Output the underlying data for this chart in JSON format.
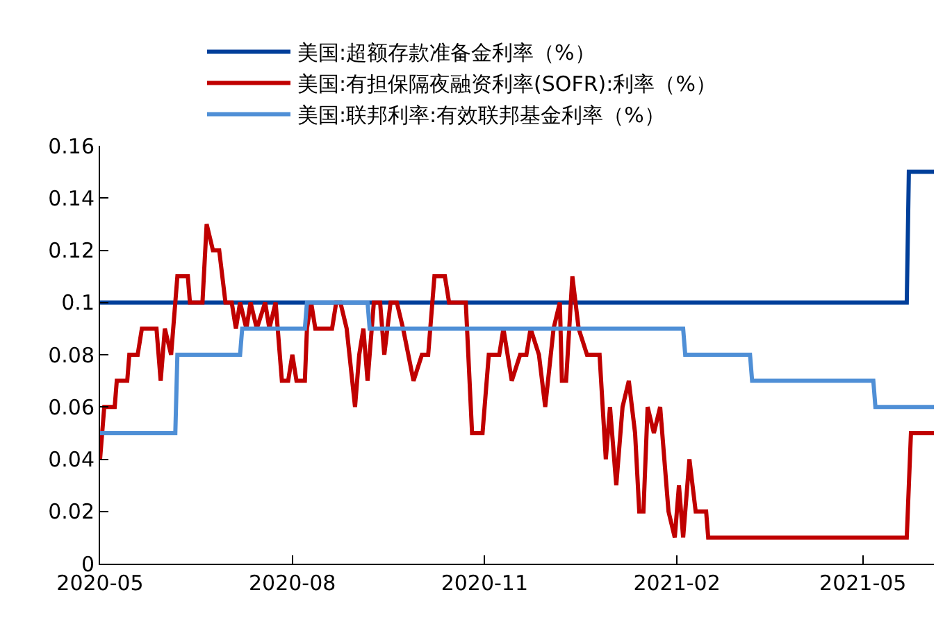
{
  "chart_data": {
    "type": "line",
    "legend": "top",
    "grid": false,
    "marker": "none",
    "line_style": "solid",
    "xlim": [
      "2020-05-01",
      "2021-06-04"
    ],
    "xticks": [
      {
        "value": "2020-05-01",
        "label": "2020-05"
      },
      {
        "value": "2020-08-01",
        "label": "2020-08"
      },
      {
        "value": "2020-11-01",
        "label": "2020-11"
      },
      {
        "value": "2021-02-01",
        "label": "2021-02"
      },
      {
        "value": "2021-05-01",
        "label": "2021-05"
      }
    ],
    "ylim": [
      0,
      0.16
    ],
    "yticks": [
      0,
      0.02,
      0.04,
      0.06,
      0.08,
      0.1,
      0.12,
      0.14,
      0.16
    ],
    "series": [
      {
        "name": "美国:超额存款准备金利率（%）",
        "color": "#003f9a",
        "x": [
          "2020-05-01",
          "2021-05-22",
          "2021-05-23",
          "2021-06-04"
        ],
        "values": [
          0.1,
          0.1,
          0.15,
          0.15
        ]
      },
      {
        "name": "美国:有担保隔夜融资利率(SOFR):利率（%）",
        "color": "#c00000",
        "x": [
          "2020-05-01",
          "2020-05-03",
          "2020-05-08",
          "2020-05-09",
          "2020-05-14",
          "2020-05-15",
          "2020-05-19",
          "2020-05-21",
          "2020-05-28",
          "2020-05-30",
          "2020-06-01",
          "2020-06-04",
          "2020-06-07",
          "2020-06-12",
          "2020-06-13",
          "2020-06-19",
          "2020-06-21",
          "2020-06-24",
          "2020-06-27",
          "2020-06-30",
          "2020-07-03",
          "2020-07-05",
          "2020-07-07",
          "2020-07-10",
          "2020-07-12",
          "2020-07-15",
          "2020-07-19",
          "2020-07-21",
          "2020-07-24",
          "2020-07-27",
          "2020-07-30",
          "2020-08-01",
          "2020-08-03",
          "2020-08-07",
          "2020-08-08",
          "2020-08-10",
          "2020-08-12",
          "2020-08-20",
          "2020-08-22",
          "2020-08-24",
          "2020-08-27",
          "2020-08-31",
          "2020-09-02",
          "2020-09-04",
          "2020-09-06",
          "2020-09-09",
          "2020-09-12",
          "2020-09-14",
          "2020-09-17",
          "2020-09-20",
          "2020-09-23",
          "2020-09-28",
          "2020-10-02",
          "2020-10-05",
          "2020-10-08",
          "2020-10-13",
          "2020-10-15",
          "2020-10-23",
          "2020-10-26",
          "2020-10-31",
          "2020-11-03",
          "2020-11-08",
          "2020-11-10",
          "2020-11-14",
          "2020-11-18",
          "2020-11-21",
          "2020-11-23",
          "2020-11-27",
          "2020-11-30",
          "2020-12-04",
          "2020-12-07",
          "2020-12-08",
          "2020-12-10",
          "2020-12-13",
          "2020-12-16",
          "2020-12-20",
          "2020-12-26",
          "2020-12-29",
          "2020-12-31",
          "2021-01-03",
          "2021-01-06",
          "2021-01-09",
          "2021-01-12",
          "2021-01-14",
          "2021-01-16",
          "2021-01-18",
          "2021-01-21",
          "2021-01-24",
          "2021-01-28",
          "2021-01-31",
          "2021-02-02",
          "2021-02-04",
          "2021-02-07",
          "2021-02-10",
          "2021-02-15",
          "2021-02-16",
          "2021-05-22",
          "2021-05-24",
          "2021-06-04"
        ],
        "values": [
          0.04,
          0.06,
          0.06,
          0.07,
          0.07,
          0.08,
          0.08,
          0.09,
          0.09,
          0.07,
          0.09,
          0.08,
          0.11,
          0.11,
          0.1,
          0.1,
          0.13,
          0.12,
          0.12,
          0.1,
          0.1,
          0.09,
          0.1,
          0.09,
          0.1,
          0.09,
          0.1,
          0.09,
          0.1,
          0.07,
          0.07,
          0.08,
          0.07,
          0.07,
          0.09,
          0.1,
          0.09,
          0.09,
          0.1,
          0.1,
          0.09,
          0.06,
          0.08,
          0.09,
          0.07,
          0.1,
          0.1,
          0.08,
          0.1,
          0.1,
          0.09,
          0.07,
          0.08,
          0.08,
          0.11,
          0.11,
          0.1,
          0.1,
          0.05,
          0.05,
          0.08,
          0.08,
          0.09,
          0.07,
          0.08,
          0.08,
          0.09,
          0.08,
          0.06,
          0.09,
          0.1,
          0.07,
          0.07,
          0.11,
          0.09,
          0.08,
          0.08,
          0.04,
          0.06,
          0.03,
          0.06,
          0.07,
          0.05,
          0.02,
          0.02,
          0.06,
          0.05,
          0.06,
          0.02,
          0.01,
          0.03,
          0.01,
          0.04,
          0.02,
          0.02,
          0.01,
          0.01,
          0.05,
          0.05
        ]
      },
      {
        "name": "美国:联邦利率:有效联邦基金利率（%）",
        "color": "#4f8fd6",
        "x": [
          "2020-05-01",
          "2020-06-06",
          "2020-06-07",
          "2020-07-07",
          "2020-07-08",
          "2020-08-07",
          "2020-08-08",
          "2020-09-06",
          "2020-09-07",
          "2021-02-04",
          "2021-02-05",
          "2021-03-08",
          "2021-03-09",
          "2021-05-06",
          "2021-05-07",
          "2021-06-04"
        ],
        "values": [
          0.05,
          0.05,
          0.08,
          0.08,
          0.09,
          0.09,
          0.1,
          0.1,
          0.09,
          0.09,
          0.08,
          0.08,
          0.07,
          0.07,
          0.06,
          0.06
        ]
      }
    ]
  }
}
